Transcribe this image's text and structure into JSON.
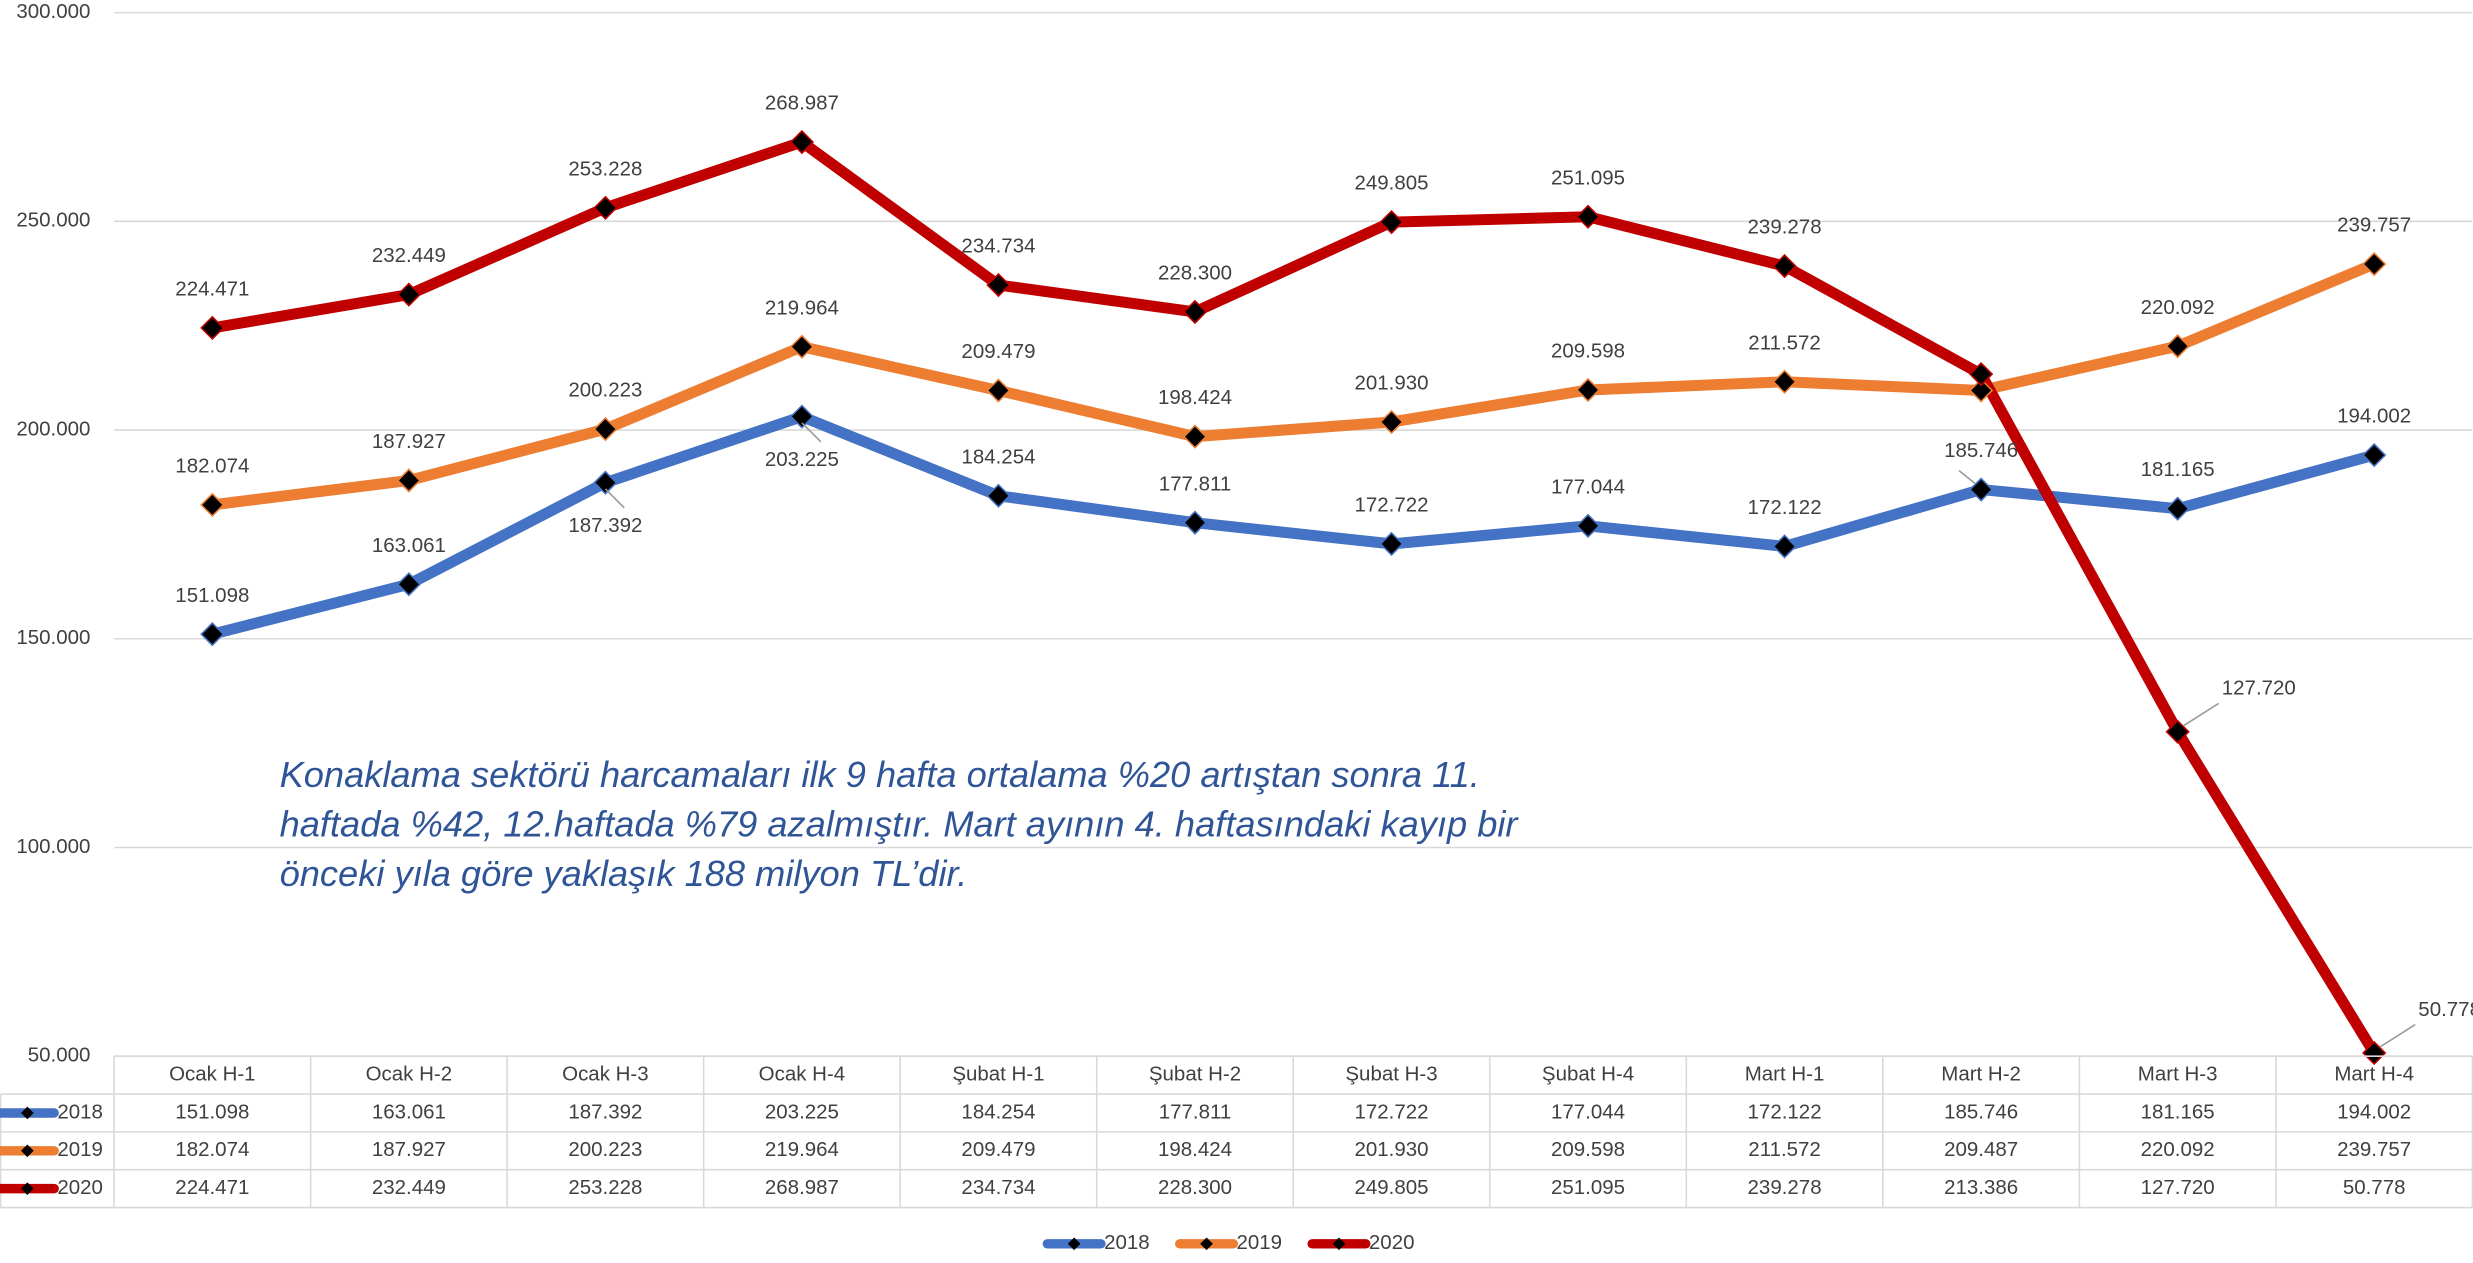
{
  "chart_data": {
    "type": "line",
    "categories": [
      "Ocak H-1",
      "Ocak H-2",
      "Ocak H-3",
      "Ocak H-4",
      "Şubat H-1",
      "Şubat H-2",
      "Şubat H-3",
      "Şubat H-4",
      "Mart H-1",
      "Mart H-2",
      "Mart H-3",
      "Mart H-4"
    ],
    "series": [
      {
        "name": "2018",
        "color": "#4472c4",
        "values": [
          151098,
          163061,
          187392,
          203225,
          184254,
          177811,
          172722,
          177044,
          172122,
          185746,
          181165,
          194002
        ],
        "value_labels": [
          "151.098",
          "163.061",
          "187.392",
          "203.225",
          "184.254",
          "177.811",
          "172.722",
          "177.044",
          "172.122",
          "185.746",
          "181.165",
          "194.002"
        ]
      },
      {
        "name": "2019",
        "color": "#ed7d31",
        "values": [
          182074,
          187927,
          200223,
          219964,
          209479,
          198424,
          201930,
          209598,
          211572,
          209487,
          220092,
          239757
        ],
        "value_labels": [
          "182.074",
          "187.927",
          "200.223",
          "219.964",
          "209.479",
          "198.424",
          "201.930",
          "209.598",
          "211.572",
          "209.487",
          "220.092",
          "239.757"
        ]
      },
      {
        "name": "2020",
        "color": "#c00000",
        "values": [
          224471,
          232449,
          253228,
          268987,
          234734,
          228300,
          249805,
          251095,
          239278,
          213386,
          127720,
          50778
        ],
        "value_labels": [
          "224.471",
          "232.449",
          "253.228",
          "268.987",
          "234.734",
          "228.300",
          "249.805",
          "251.095",
          "239.278",
          "213.386",
          "127.720",
          "50.778"
        ]
      }
    ],
    "ylim": [
      50000,
      300000
    ],
    "yticks": [
      {
        "value": 50000,
        "label": "50.000"
      },
      {
        "value": 100000,
        "label": "100.000"
      },
      {
        "value": 150000,
        "label": "150.000"
      },
      {
        "value": 200000,
        "label": "200.000"
      },
      {
        "value": 250000,
        "label": "250.000"
      },
      {
        "value": 300000,
        "label": "300.000"
      }
    ],
    "grid": true,
    "annotation": [
      "Konaklama sektörü harcamaları ilk 9 hafta ortalama %20 artıştan sonra 11.",
      "haftada %42, 12.haftada %79 azalmıştır. Mart ayının 4. haftasındaki kayıp bir",
      "önceki yıla göre yaklaşık 188 milyon TL’dir."
    ],
    "legend": "bottom"
  }
}
